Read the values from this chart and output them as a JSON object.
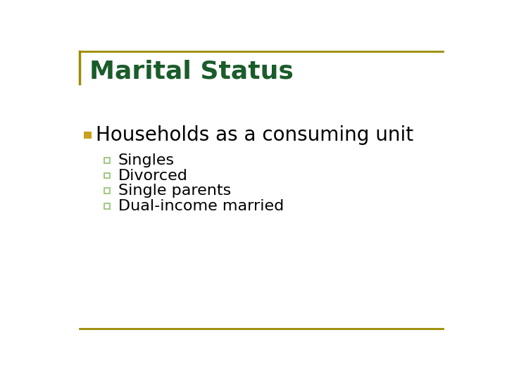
{
  "title": "Marital Status",
  "title_color": "#1a5c2a",
  "title_fontsize": 26,
  "background_color": "#ffffff",
  "border_color": "#9B8B00",
  "bullet1_text": "Households as a consuming unit",
  "bullet1_color": "#000000",
  "bullet1_fontsize": 20,
  "bullet1_marker_color": "#C8A020",
  "sub_items": [
    "Singles",
    "Divorced",
    "Single parents",
    "Dual-income married"
  ],
  "sub_color": "#000000",
  "sub_fontsize": 16,
  "sub_bullet_edge_color": "#90C070",
  "sub_bullet_face_color": "#ffffff"
}
